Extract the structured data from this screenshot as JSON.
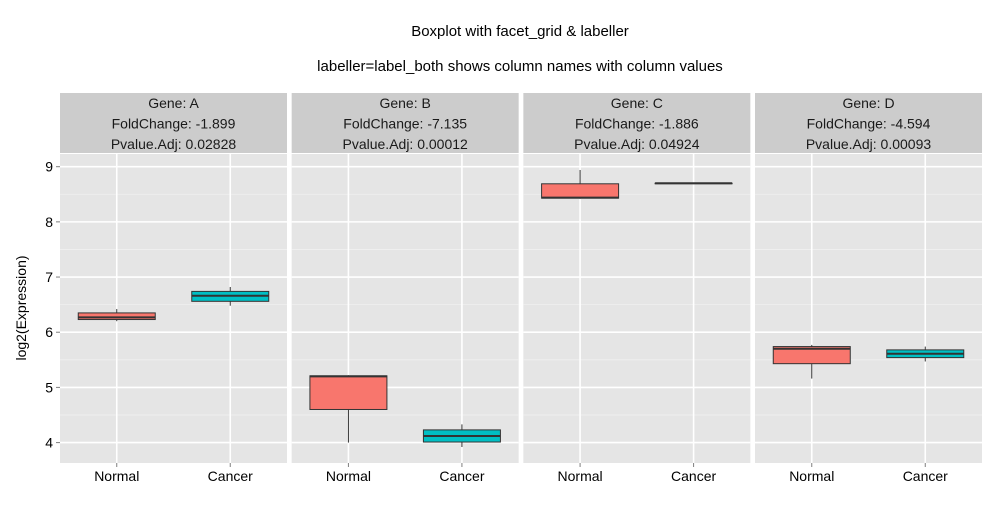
{
  "chart_data": {
    "type": "box",
    "title": "Boxplot with facet_grid & labeller",
    "subtitle": "labeller=label_both shows column names with column values",
    "xlabel": "",
    "ylabel": "log2(Expression)",
    "ylim": [
      3.63,
      9.23
    ],
    "yticks": [
      4,
      5,
      6,
      7,
      8,
      9
    ],
    "categories": [
      "Normal",
      "Cancer"
    ],
    "colors": {
      "Normal": "#F8766D",
      "Cancer": "#00BFC4"
    },
    "theme": {
      "panel_bg": "#E5E5E5",
      "strip_bg": "#CCCCCC",
      "grid_major": "#FFFFFF",
      "grid_minor": "#F0F0F0"
    },
    "legend": "none",
    "panels": [
      {
        "labels": [
          "Gene: A",
          "FoldChange: -1.899",
          "Pvalue.Adj: 0.02828"
        ],
        "boxes": [
          {
            "group": "Normal",
            "min": 6.2,
            "q1": 6.23,
            "median": 6.27,
            "q3": 6.35,
            "max": 6.42
          },
          {
            "group": "Cancer",
            "min": 6.48,
            "q1": 6.56,
            "median": 6.66,
            "q3": 6.74,
            "max": 6.82
          }
        ]
      },
      {
        "labels": [
          "Gene: B",
          "FoldChange: -7.135",
          "Pvalue.Adj: 0.00012"
        ],
        "boxes": [
          {
            "group": "Normal",
            "min": 4.0,
            "q1": 4.6,
            "median": 5.2,
            "q3": 5.21,
            "max": 5.22
          },
          {
            "group": "Cancer",
            "min": 3.92,
            "q1": 4.01,
            "median": 4.12,
            "q3": 4.23,
            "max": 4.33
          }
        ]
      },
      {
        "labels": [
          "Gene: C",
          "FoldChange: -1.886",
          "Pvalue.Adj: 0.04924"
        ],
        "boxes": [
          {
            "group": "Normal",
            "min": 8.42,
            "q1": 8.43,
            "median": 8.44,
            "q3": 8.69,
            "max": 8.94
          },
          {
            "group": "Cancer",
            "min": 8.7,
            "q1": 8.7,
            "median": 8.7,
            "q3": 8.7,
            "max": 8.7
          }
        ]
      },
      {
        "labels": [
          "Gene: D",
          "FoldChange: -4.594",
          "Pvalue.Adj: 0.00093"
        ],
        "boxes": [
          {
            "group": "Normal",
            "min": 5.16,
            "q1": 5.43,
            "median": 5.7,
            "q3": 5.74,
            "max": 5.77
          },
          {
            "group": "Cancer",
            "min": 5.47,
            "q1": 5.54,
            "median": 5.61,
            "q3": 5.68,
            "max": 5.74
          }
        ]
      }
    ]
  }
}
